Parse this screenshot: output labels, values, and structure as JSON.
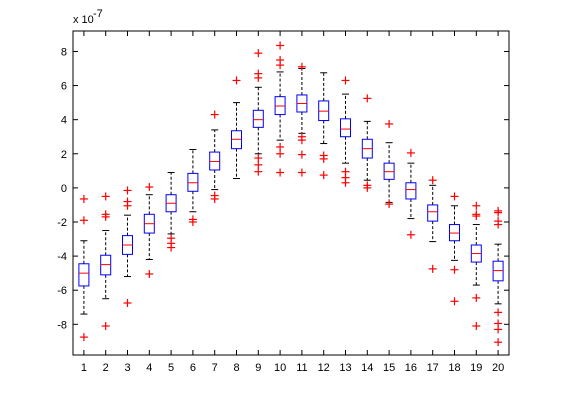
{
  "chart_data": {
    "type": "boxplot",
    "title": "",
    "xlabel": "",
    "ylabel": "",
    "y_exponent_label": "x 10",
    "y_exponent_power": "-7",
    "ylim": [
      -9.8,
      9.2
    ],
    "yticks": [
      -8,
      -6,
      -4,
      -2,
      0,
      2,
      4,
      6,
      8
    ],
    "ytick_labels": [
      "-8",
      "-6",
      "-4",
      "-2",
      "0",
      "2",
      "4",
      "6",
      "8"
    ],
    "categories": [
      "1",
      "2",
      "3",
      "4",
      "5",
      "6",
      "7",
      "8",
      "9",
      "10",
      "11",
      "12",
      "13",
      "14",
      "15",
      "16",
      "17",
      "18",
      "19",
      "20"
    ],
    "box_color": "#0000ff",
    "median_color": "#ff0000",
    "whisker_color": "#000000",
    "outlier_color": "#ff0000",
    "boxes": [
      {
        "q1": -5.75,
        "median": -5.0,
        "q3": -4.45,
        "lower_whisker": -7.4,
        "upper_whisker": -3.1,
        "outliers": [
          -8.75,
          -1.9,
          -0.65
        ]
      },
      {
        "q1": -5.1,
        "median": -4.5,
        "q3": -3.95,
        "lower_whisker": -6.5,
        "upper_whisker": -2.5,
        "outliers": [
          -8.1,
          -1.7,
          -1.55,
          -0.5
        ]
      },
      {
        "q1": -3.9,
        "median": -3.35,
        "q3": -2.8,
        "lower_whisker": -5.2,
        "upper_whisker": -1.6,
        "outliers": [
          -6.75,
          -1.05,
          -0.8,
          -0.15
        ]
      },
      {
        "q1": -2.65,
        "median": -2.1,
        "q3": -1.55,
        "lower_whisker": -4.2,
        "upper_whisker": -0.4,
        "outliers": [
          -5.05,
          0.05
        ]
      },
      {
        "q1": -1.4,
        "median": -0.9,
        "q3": -0.4,
        "lower_whisker": -2.7,
        "upper_whisker": 0.9,
        "outliers": [
          -3.5,
          -3.25,
          -2.95
        ]
      },
      {
        "q1": -0.2,
        "median": 0.3,
        "q3": 0.85,
        "lower_whisker": -1.4,
        "upper_whisker": 2.25,
        "outliers": [
          -2.0,
          -1.85
        ]
      },
      {
        "q1": 1.05,
        "median": 1.55,
        "q3": 2.1,
        "lower_whisker": -0.1,
        "upper_whisker": 3.4,
        "outliers": [
          -0.65,
          -0.45,
          4.3
        ]
      },
      {
        "q1": 2.3,
        "median": 2.85,
        "q3": 3.35,
        "lower_whisker": 0.55,
        "upper_whisker": 5.0,
        "outliers": [
          6.3
        ]
      },
      {
        "q1": 3.55,
        "median": 4.0,
        "q3": 4.55,
        "lower_whisker": 2.0,
        "upper_whisker": 5.9,
        "outliers": [
          0.95,
          1.35,
          1.75,
          6.45,
          6.7,
          7.9
        ]
      },
      {
        "q1": 4.3,
        "median": 4.8,
        "q3": 5.35,
        "lower_whisker": 2.8,
        "upper_whisker": 6.8,
        "outliers": [
          0.9,
          2.0,
          2.4,
          7.2,
          7.5,
          8.35
        ]
      },
      {
        "q1": 4.45,
        "median": 4.95,
        "q3": 5.45,
        "lower_whisker": 3.2,
        "upper_whisker": 7.0,
        "outliers": [
          0.9,
          1.95,
          2.8,
          3.0,
          7.1
        ]
      },
      {
        "q1": 3.95,
        "median": 4.5,
        "q3": 5.1,
        "lower_whisker": 2.6,
        "upper_whisker": 6.75,
        "outliers": [
          0.75,
          1.7,
          1.9
        ]
      },
      {
        "q1": 3.0,
        "median": 3.45,
        "q3": 4.05,
        "lower_whisker": 1.45,
        "upper_whisker": 5.5,
        "outliers": [
          0.3,
          0.6,
          0.95,
          6.3
        ]
      },
      {
        "q1": 1.75,
        "median": 2.3,
        "q3": 2.85,
        "lower_whisker": 0.45,
        "upper_whisker": 3.9,
        "outliers": [
          0.0,
          0.15,
          5.25
        ]
      },
      {
        "q1": 0.5,
        "median": 0.95,
        "q3": 1.45,
        "lower_whisker": -0.85,
        "upper_whisker": 2.65,
        "outliers": [
          -0.95,
          3.75
        ]
      },
      {
        "q1": -0.65,
        "median": -0.1,
        "q3": 0.3,
        "lower_whisker": -1.8,
        "upper_whisker": 1.45,
        "outliers": [
          -2.75,
          2.05
        ]
      },
      {
        "q1": -1.95,
        "median": -1.4,
        "q3": -1.0,
        "lower_whisker": -3.15,
        "upper_whisker": 0.15,
        "outliers": [
          -4.75,
          0.45
        ]
      },
      {
        "q1": -3.1,
        "median": -2.65,
        "q3": -2.15,
        "lower_whisker": -4.25,
        "upper_whisker": -1.05,
        "outliers": [
          -6.65,
          -4.8,
          -0.5
        ]
      },
      {
        "q1": -4.35,
        "median": -3.85,
        "q3": -3.35,
        "lower_whisker": -5.7,
        "upper_whisker": -2.15,
        "outliers": [
          -8.1,
          -6.45,
          -1.65,
          -1.55,
          -1.05
        ]
      },
      {
        "q1": -5.45,
        "median": -4.85,
        "q3": -4.3,
        "lower_whisker": -6.8,
        "upper_whisker": -3.3,
        "outliers": [
          -9.05,
          -8.3,
          -7.95,
          -7.3,
          -2.15,
          -1.95,
          -1.45,
          -1.35
        ]
      }
    ]
  }
}
